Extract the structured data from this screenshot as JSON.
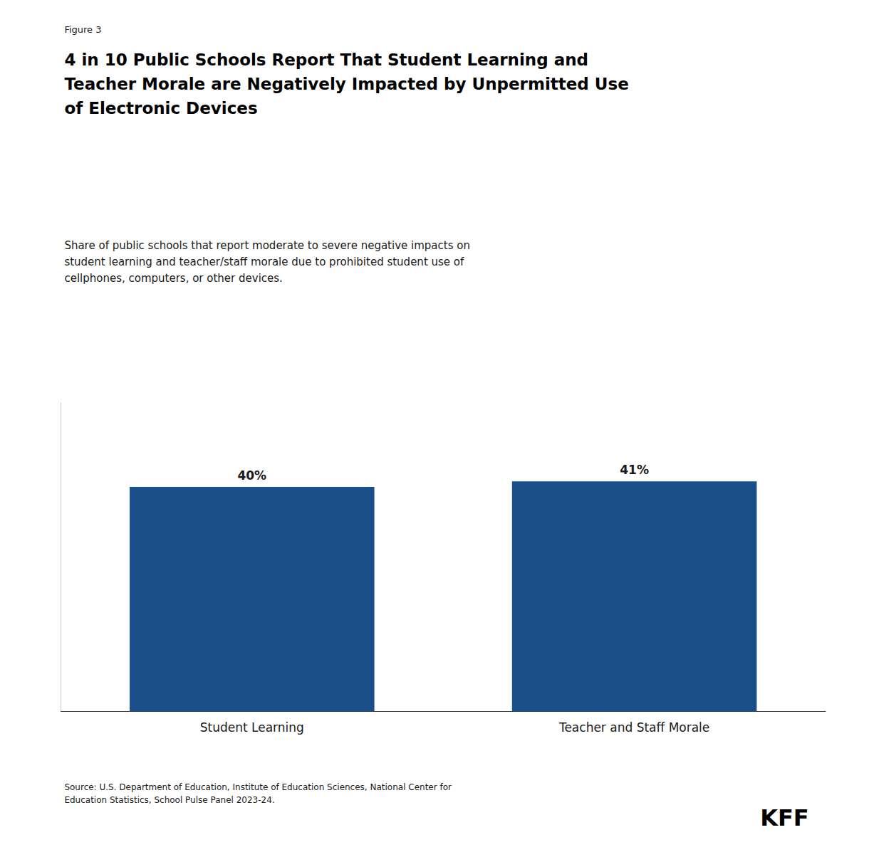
{
  "chart_data": {
    "type": "bar",
    "title": "4 in 10 Public Schools Report That Student Learning and\nTeacher Morale are Negatively Impacted by Unpermitted Use\nof Electronic Devices",
    "subtitle": "Share of public schools that report moderate to severe negative impacts on\nstudent learning and teacher/staff morale due to prohibited student use of\ncellphones, computers, or other devices.",
    "annotations": [
      "Figure 3",
      "Source: U.S. Department of Education, Institute of Education Sciences, National Center for\nEducation Statistics, School Pulse Panel 2023-24.",
      "KFF"
    ],
    "categories": [
      "Student Learning",
      "Teacher and Staff Morale"
    ],
    "values": [
      40,
      41
    ],
    "value_labels": [
      "40%",
      "41%"
    ],
    "data_labels": true,
    "color": "#1a4f8a",
    "ylim": [
      0,
      55
    ],
    "grid": false,
    "tick_labels": "x"
  }
}
